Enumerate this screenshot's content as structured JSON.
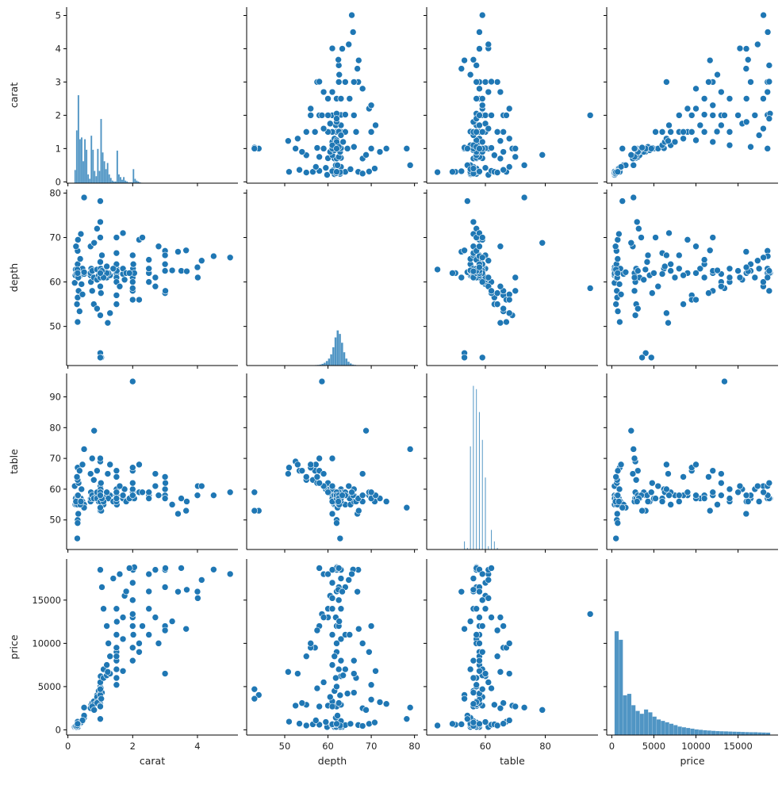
{
  "chart_data": {
    "type": "scatter",
    "layout": "pairplot-4x4",
    "variables": [
      "carat",
      "depth",
      "table",
      "price"
    ],
    "axis_labels": {
      "carat": "carat",
      "depth": "depth",
      "table": "table",
      "price": "price"
    },
    "limits": {
      "carat": [
        -0.04,
        5.25
      ],
      "depth": [
        41.2,
        80.8
      ],
      "table": [
        40.4,
        97.6
      ],
      "price": [
        -600,
        19750
      ]
    },
    "x_ticks": {
      "carat": [
        0,
        2,
        4
      ],
      "depth": [
        50,
        60,
        70,
        80
      ],
      "table": [
        60,
        80
      ],
      "price": [
        0,
        5000,
        10000,
        15000
      ]
    },
    "y_ticks": {
      "carat": [
        0,
        1,
        2,
        3,
        4,
        5
      ],
      "depth": [
        50,
        60,
        70,
        80
      ],
      "table": [
        50,
        60,
        70,
        80,
        90
      ],
      "price": [
        0,
        5000,
        10000,
        15000
      ]
    },
    "grid": false,
    "colors": {
      "marker": "#1f77b4",
      "marker_edge": "#ffffff",
      "hist": "#1f77b4",
      "axis": "#000000"
    },
    "records_columns": [
      "carat",
      "depth",
      "table",
      "price"
    ],
    "records": [
      [
        0.23,
        61.5,
        55,
        326
      ],
      [
        0.21,
        59.8,
        61,
        326
      ],
      [
        0.29,
        62.4,
        58,
        334
      ],
      [
        0.31,
        63.3,
        58,
        335
      ],
      [
        0.24,
        62.8,
        57,
        336
      ],
      [
        0.26,
        61.9,
        55,
        337
      ],
      [
        0.3,
        64,
        55,
        554
      ],
      [
        0.32,
        60.9,
        58,
        580
      ],
      [
        0.35,
        61.2,
        56,
        620
      ],
      [
        0.4,
        62.5,
        57,
        850
      ],
      [
        0.42,
        59.5,
        60,
        910
      ],
      [
        0.45,
        63,
        56,
        1020
      ],
      [
        0.5,
        61.8,
        55,
        1400
      ],
      [
        0.5,
        62.2,
        54,
        1650
      ],
      [
        0.33,
        58,
        62,
        600
      ],
      [
        0.38,
        65.2,
        55,
        700
      ],
      [
        0.3,
        56.5,
        63,
        640
      ],
      [
        0.3,
        67,
        57,
        560
      ],
      [
        0.28,
        55,
        64,
        500
      ],
      [
        0.25,
        68,
        56,
        450
      ],
      [
        0.3,
        51,
        67,
        945
      ],
      [
        0.36,
        53.4,
        66,
        720
      ],
      [
        0.31,
        69.5,
        58,
        700
      ],
      [
        0.4,
        70.8,
        56,
        850
      ],
      [
        0.45,
        57.2,
        68,
        1100
      ],
      [
        0.3,
        62,
        50,
        600
      ],
      [
        0.32,
        61,
        52,
        650
      ],
      [
        0.29,
        62.8,
        44,
        500
      ],
      [
        0.3,
        62,
        49,
        700
      ],
      [
        0.7,
        61.5,
        57,
        2757
      ],
      [
        0.7,
        62,
        56,
        2700
      ],
      [
        0.71,
        60,
        59,
        2800
      ],
      [
        0.72,
        63,
        57,
        2900
      ],
      [
        0.75,
        62.5,
        58,
        3100
      ],
      [
        0.8,
        61,
        57,
        3300
      ],
      [
        0.9,
        62.8,
        58,
        4000
      ],
      [
        0.9,
        60.5,
        59,
        3800
      ],
      [
        0.95,
        61.5,
        56,
        4500
      ],
      [
        1.0,
        62,
        57,
        5000
      ],
      [
        1.0,
        64.5,
        58,
        4200
      ],
      [
        1.0,
        59,
        61,
        5500
      ],
      [
        1.01,
        63,
        60,
        6200
      ],
      [
        1.02,
        57.5,
        62,
        4800
      ],
      [
        1.05,
        66,
        56,
        4300
      ],
      [
        1.1,
        61.8,
        57,
        6000
      ],
      [
        1.1,
        62.5,
        55,
        7000
      ],
      [
        1.2,
        61,
        58,
        7500
      ],
      [
        1.2,
        63.5,
        59,
        6300
      ],
      [
        1.0,
        70,
        58,
        3500
      ],
      [
        0.9,
        72,
        57,
        3200
      ],
      [
        1.0,
        73.5,
        56,
        3000
      ],
      [
        0.8,
        55,
        63,
        2900
      ],
      [
        0.9,
        54,
        66,
        3100
      ],
      [
        1.0,
        52.5,
        69,
        2800
      ],
      [
        1.0,
        44,
        53,
        4032
      ],
      [
        1.03,
        43,
        53,
        3600
      ],
      [
        1.0,
        43,
        59,
        4700
      ],
      [
        0.5,
        79,
        73,
        2579
      ],
      [
        0.7,
        68,
        65,
        2500
      ],
      [
        0.75,
        58,
        70,
        2700
      ],
      [
        0.81,
        68.8,
        79,
        2301
      ],
      [
        1.0,
        78.2,
        54,
        1262
      ],
      [
        1.0,
        61,
        70,
        2700
      ],
      [
        1.5,
        62,
        58,
        9000
      ],
      [
        1.5,
        61,
        57,
        11000
      ],
      [
        1.5,
        63,
        56,
        8000
      ],
      [
        1.5,
        60,
        60,
        14000
      ],
      [
        1.5,
        64,
        59,
        7000
      ],
      [
        1.51,
        62.5,
        55,
        12500
      ],
      [
        1.7,
        61.8,
        58,
        13000
      ],
      [
        1.7,
        63,
        57,
        10500
      ],
      [
        1.75,
        60.5,
        60,
        15500
      ],
      [
        1.8,
        62,
        56,
        16000
      ],
      [
        2.0,
        62.5,
        59,
        15000
      ],
      [
        2.0,
        61,
        60,
        17000
      ],
      [
        2.01,
        63,
        57,
        18500
      ],
      [
        2.0,
        60,
        62,
        13000
      ],
      [
        2.02,
        64,
        58,
        11000
      ],
      [
        2.05,
        62,
        57,
        18800
      ],
      [
        1.3,
        61.5,
        58,
        8500
      ],
      [
        1.25,
        62,
        57,
        10000
      ],
      [
        1.2,
        62,
        59,
        12000
      ],
      [
        1.1,
        61,
        56,
        14000
      ],
      [
        1.05,
        62.5,
        57,
        16500
      ],
      [
        1.0,
        62,
        58,
        18500
      ],
      [
        1.4,
        63,
        56,
        17500
      ],
      [
        1.6,
        59,
        61,
        18000
      ],
      [
        1.9,
        62,
        57,
        18700
      ],
      [
        1.5,
        66.5,
        56,
        6000
      ],
      [
        1.5,
        57,
        66,
        9500
      ],
      [
        2.0,
        66,
        58,
        8000
      ],
      [
        2.0,
        58,
        66,
        12000
      ],
      [
        1.5,
        70,
        57,
        5200
      ],
      [
        1.7,
        71,
        58,
        6800
      ],
      [
        2.2,
        69.5,
        59,
        9000
      ],
      [
        2.0,
        58.6,
        95,
        13387
      ],
      [
        1.5,
        55,
        64,
        8500
      ],
      [
        2.0,
        56,
        67,
        9500
      ],
      [
        1.3,
        53,
        68,
        6500
      ],
      [
        1.23,
        50.8,
        65,
        6700
      ],
      [
        2.5,
        62,
        58,
        16000
      ],
      [
        2.5,
        63,
        57,
        14000
      ],
      [
        2.5,
        60,
        59,
        18000
      ],
      [
        2.7,
        61,
        61,
        18500
      ],
      [
        2.5,
        65,
        57,
        11000
      ],
      [
        3.0,
        62.5,
        58,
        12000
      ],
      [
        3.0,
        64,
        58,
        16500
      ],
      [
        3.0,
        67,
        57,
        18500
      ],
      [
        3.0,
        57.5,
        64,
        11500
      ],
      [
        3.0,
        66,
        60,
        6500
      ],
      [
        2.8,
        68,
        58,
        10000
      ],
      [
        3.01,
        58,
        62,
        18700
      ],
      [
        3.22,
        62.6,
        55,
        12545
      ],
      [
        3.4,
        66.8,
        52,
        15964
      ],
      [
        3.5,
        62.5,
        57,
        18701
      ],
      [
        3.65,
        67.1,
        53,
        11668
      ],
      [
        3.67,
        62.4,
        56,
        16193
      ],
      [
        4.0,
        63.3,
        58,
        15984
      ],
      [
        4.01,
        61,
        61,
        15223
      ],
      [
        4.13,
        64.8,
        61,
        17329
      ],
      [
        4.5,
        65.8,
        58,
        18531
      ],
      [
        5.01,
        65.5,
        59,
        18018
      ],
      [
        2.2,
        56,
        68,
        10000
      ],
      [
        2.3,
        70,
        59,
        12000
      ],
      [
        2.7,
        59,
        65,
        13000
      ]
    ],
    "histograms": {
      "carat": {
        "start": 0.2,
        "width": 0.05,
        "heights": [
          15,
          60,
          100,
          50,
          52,
          25,
          50,
          38,
          10,
          5,
          54,
          38,
          14,
          8,
          39,
          14,
          73,
          35,
          25,
          16,
          23,
          10,
          6,
          3,
          2,
          2,
          37,
          10,
          7,
          4,
          7,
          3,
          2,
          1,
          1,
          1,
          16,
          5,
          3,
          2,
          1,
          0.5
        ]
      },
      "depth": {
        "start": 56,
        "width": 0.5,
        "heights": [
          0.5,
          1,
          1.5,
          2,
          3,
          5,
          8,
          13,
          20,
          32,
          52,
          80,
          100,
          90,
          65,
          38,
          20,
          11,
          6,
          3,
          2,
          1,
          0.5,
          0.3
        ]
      },
      "table": {
        "width": 0.3,
        "bars": [
          [
            53,
            5
          ],
          [
            54,
            1
          ],
          [
            55,
            63
          ],
          [
            56,
            100
          ],
          [
            57,
            98
          ],
          [
            58,
            84
          ],
          [
            59,
            67
          ],
          [
            60,
            44
          ],
          [
            61,
            2
          ],
          [
            62,
            12
          ],
          [
            63,
            5
          ],
          [
            64,
            1
          ]
        ]
      },
      "price": {
        "start": 326,
        "width": 500,
        "heights": [
          73,
          67,
          28,
          29,
          21,
          17,
          15,
          18,
          16,
          13,
          11,
          10,
          9,
          8,
          7,
          6,
          5.5,
          5,
          4.5,
          4,
          3.7,
          3.4,
          3.2,
          3,
          2.8,
          2.7,
          2.6,
          2.5,
          2.4,
          2.3,
          2.2,
          2.1,
          2,
          2,
          1.9,
          1.8,
          1.7
        ]
      }
    }
  }
}
